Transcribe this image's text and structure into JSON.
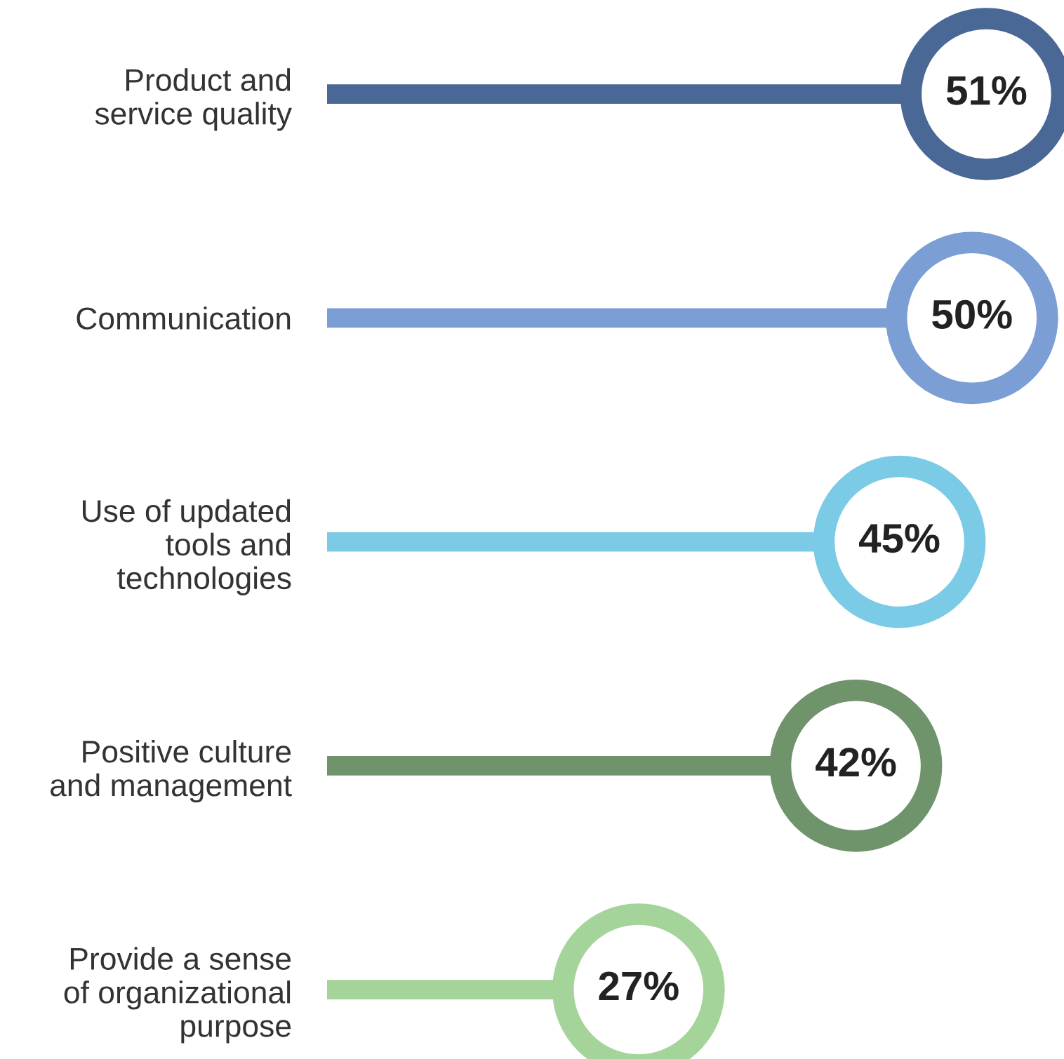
{
  "chart_data": {
    "type": "lollipop",
    "orientation": "horizontal",
    "value_labels": [
      "51%",
      "50%",
      "45%",
      "42%",
      "27%"
    ],
    "categories": [
      "Product and\nservice quality",
      "Communication",
      "Use of updated\ntools and\ntechnologies",
      "Positive culture\nand management",
      "Provide a sense\nof organizational\npurpose"
    ],
    "values": [
      51,
      50,
      45,
      42,
      27
    ],
    "colors": [
      "#4a6896",
      "#7b9ed4",
      "#7ccbe6",
      "#6f946b",
      "#a5d49a"
    ]
  }
}
